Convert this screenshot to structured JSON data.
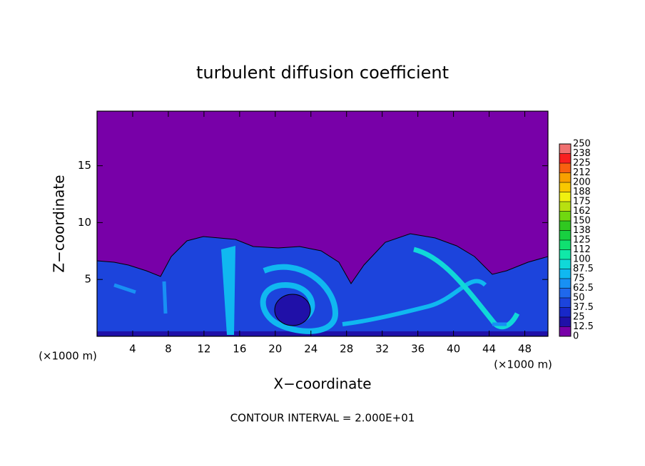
{
  "chart_data": {
    "type": "heatmap",
    "title": "turbulent diffusion coefficient",
    "x_label": "X−coordinate",
    "y_label": "Z−coordinate",
    "y_unit_label": "(×1000 m)",
    "x_unit_label": "(×1000 m)",
    "note": "CONTOUR INTERVAL = 2.000E+01",
    "xlim": [
      0,
      50.6
    ],
    "xticks": [
      4,
      8,
      12,
      16,
      20,
      24,
      28,
      32,
      36,
      40,
      44,
      48
    ],
    "ylim": [
      0,
      19.8
    ],
    "yticks": [
      5,
      10,
      15
    ],
    "colorbar": {
      "ticks": [
        0,
        12.5,
        25,
        37.5,
        50,
        62.5,
        75,
        87.5,
        100,
        112,
        125,
        138,
        150,
        162,
        175,
        188,
        200,
        212,
        225,
        238,
        250
      ],
      "colors": [
        "#7800a8",
        "#2010a8",
        "#1828c8",
        "#1c44dc",
        "#1f68ec",
        "#1890f4",
        "#10b8f0",
        "#10d8d8",
        "#10e8a8",
        "#10e070",
        "#18d040",
        "#30c820",
        "#70d810",
        "#b8e010",
        "#f0f010",
        "#f8c800",
        "#f8a000",
        "#f86010",
        "#f82020",
        "#f07070"
      ]
    }
  }
}
